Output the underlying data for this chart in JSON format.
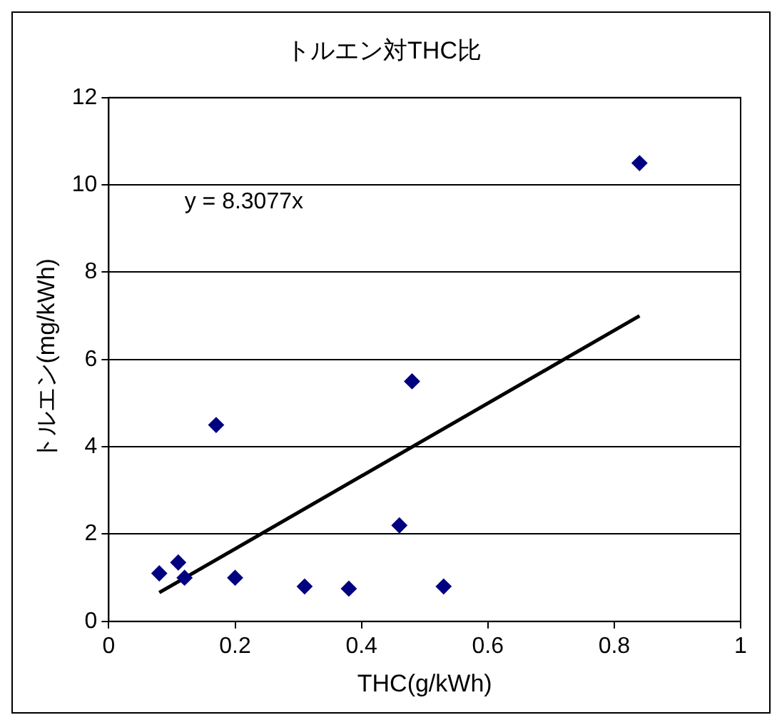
{
  "chart_data": {
    "type": "scatter",
    "title": "トルエン対THC比",
    "xlabel": "THC(g/kWh)",
    "ylabel": "トルエン(mg/kWh)",
    "annotations": [
      "y = 8.3077x"
    ],
    "xlim": [
      0,
      1
    ],
    "xticks": [
      0,
      0.2,
      0.4,
      0.6,
      0.8,
      1
    ],
    "ylim": [
      0,
      12
    ],
    "yticks": [
      0,
      2,
      4,
      6,
      8,
      10,
      12
    ],
    "grid": "y",
    "legend": false,
    "marker": "diamond",
    "series": [
      {
        "color": "#000080",
        "x": [
          0.08,
          0.11,
          0.12,
          0.17,
          0.2,
          0.31,
          0.38,
          0.46,
          0.48,
          0.53,
          0.84
        ],
        "values": [
          1.1,
          1.35,
          1.0,
          4.5,
          1.0,
          0.8,
          0.75,
          2.2,
          5.5,
          0.8,
          10.5
        ]
      },
      {
        "type": "line",
        "color": "#000000",
        "x": [
          0.08,
          0.84
        ],
        "values": [
          0.66,
          7.0
        ],
        "marker": "none",
        "line_style": "solid"
      }
    ]
  }
}
